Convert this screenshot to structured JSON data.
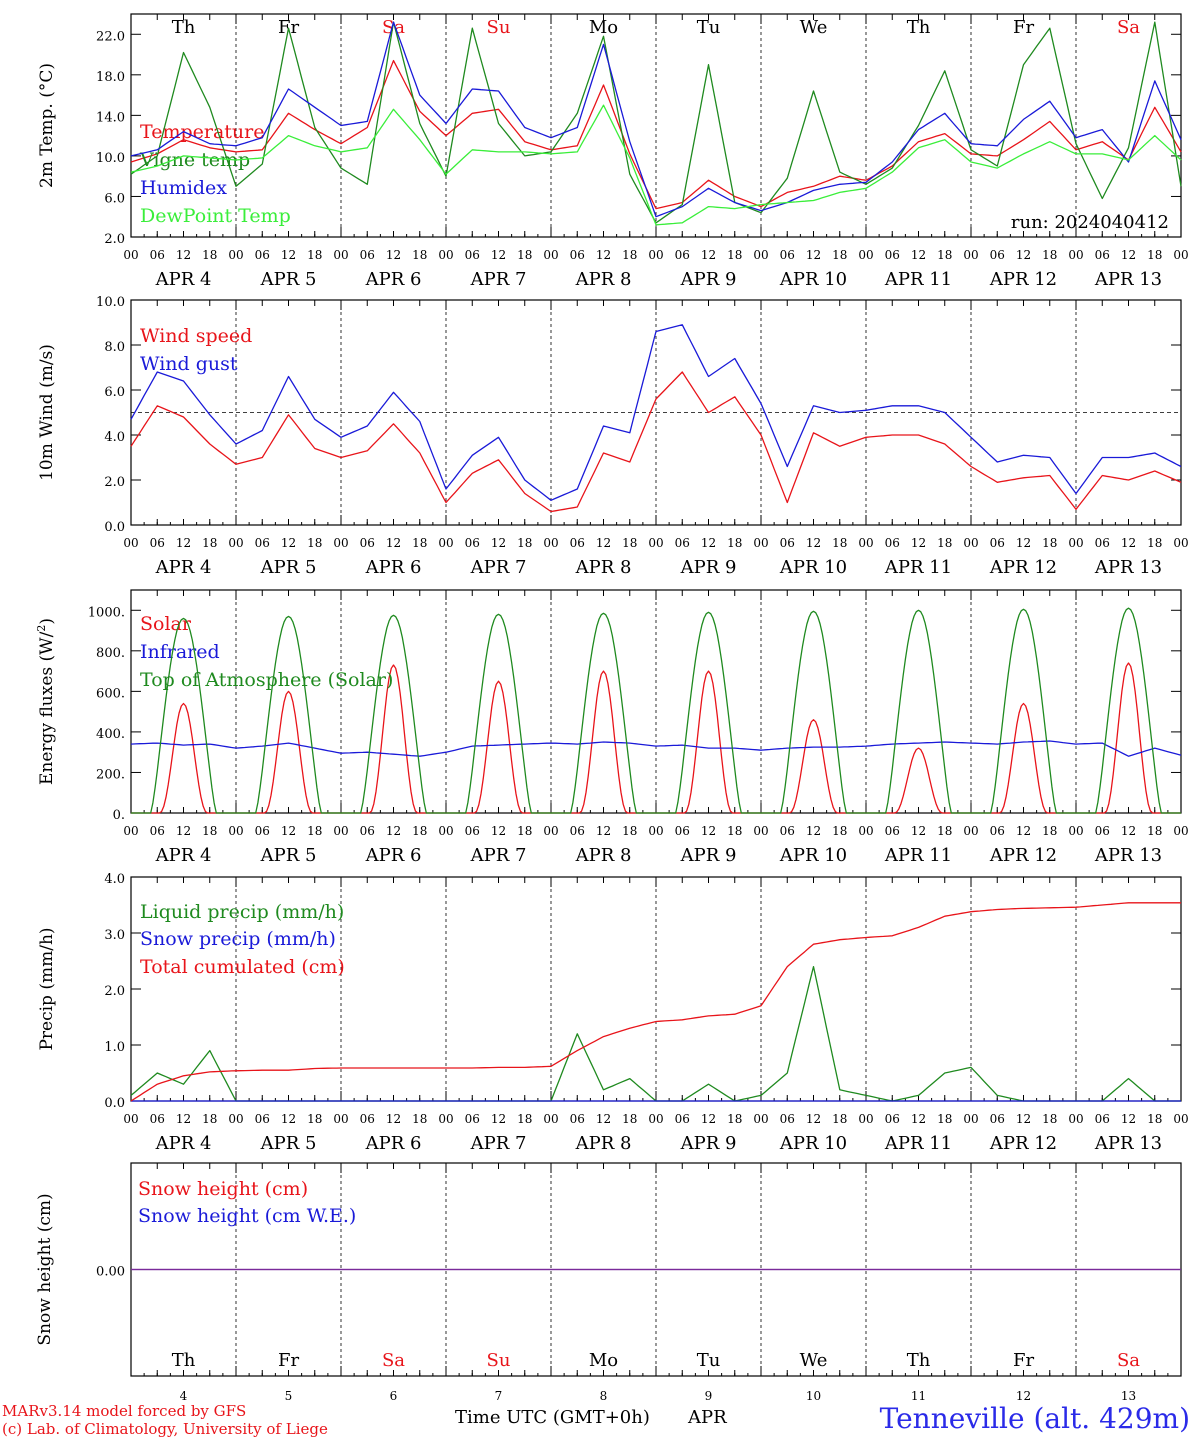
{
  "colors": {
    "red": "#e8141a",
    "darkgreen": "#1f8a1f",
    "blue": "#1a1ad8",
    "lightgreen": "#3aee3a",
    "purple": "#7a2a9a",
    "weekend": "#e8141a",
    "weekday": "#000000"
  },
  "days": [
    {
      "abbr": "Th",
      "date": "APR 4",
      "num": "4",
      "weekend": false
    },
    {
      "abbr": "Fr",
      "date": "APR 5",
      "num": "5",
      "weekend": false
    },
    {
      "abbr": "Sa",
      "date": "APR 6",
      "num": "6",
      "weekend": true
    },
    {
      "abbr": "Su",
      "date": "APR 7",
      "num": "7",
      "weekend": true
    },
    {
      "abbr": "Mo",
      "date": "APR 8",
      "num": "8",
      "weekend": false
    },
    {
      "abbr": "Tu",
      "date": "APR 9",
      "num": "9",
      "weekend": false
    },
    {
      "abbr": "We",
      "date": "APR 10",
      "num": "10",
      "weekend": false
    },
    {
      "abbr": "Th",
      "date": "APR 11",
      "num": "11",
      "weekend": false
    },
    {
      "abbr": "Fr",
      "date": "APR 12",
      "num": "12",
      "weekend": false
    },
    {
      "abbr": "Sa",
      "date": "APR 13",
      "num": "13",
      "weekend": true
    }
  ],
  "hour_labels": [
    "00",
    "06",
    "12",
    "18"
  ],
  "run_label": "run: 2024040412",
  "footer": {
    "credit_line1": "MARv3.14 model forced by GFS",
    "credit_line2": "(c) Lab. of Climatology, University of Liege",
    "xlabel": "Time UTC (GMT+0h)",
    "month": "APR",
    "station": "Tenneville (alt. 429m)"
  },
  "chart_data": [
    {
      "type": "line",
      "ylabel": "2m Temp. (°C)",
      "ylim": [
        2,
        24
      ],
      "yticks": [
        "2.0",
        "6.0",
        "10.0",
        "14.0",
        "18.0",
        "22.0"
      ],
      "x": [
        0,
        6,
        12,
        18,
        24,
        30,
        36,
        42,
        48,
        54,
        60,
        66,
        72,
        78,
        84,
        90,
        96,
        102,
        108,
        114,
        120,
        126,
        132,
        138,
        144,
        150,
        156,
        162,
        168,
        174,
        180,
        186,
        192,
        198,
        204,
        210,
        216,
        222,
        228,
        234,
        240
      ],
      "series": [
        {
          "name": "Temperature",
          "color": "red",
          "values": [
            9.4,
            10.2,
            11.6,
            10.8,
            10.4,
            10.6,
            14.2,
            12.6,
            11.2,
            12.8,
            19.4,
            14.4,
            12.0,
            14.2,
            14.6,
            11.4,
            10.6,
            11.0,
            17.0,
            10.2,
            4.8,
            5.4,
            7.6,
            6.0,
            5.0,
            6.4,
            7.0,
            8.0,
            7.6,
            9.0,
            11.4,
            12.2,
            10.2,
            10.0,
            11.6,
            13.4,
            10.6,
            11.4,
            9.6,
            14.8,
            10.4
          ]
        },
        {
          "name": "Vigne temp",
          "color": "darkgreen",
          "values": [
            8.2,
            10.0,
            20.2,
            14.8,
            7.0,
            9.2,
            22.6,
            12.8,
            8.8,
            7.2,
            23.2,
            13.2,
            8.0,
            22.6,
            13.2,
            10.0,
            10.4,
            14.2,
            21.8,
            8.2,
            3.4,
            5.2,
            19.0,
            5.4,
            4.4,
            7.8,
            16.4,
            8.4,
            7.2,
            8.8,
            13.0,
            18.4,
            10.6,
            9.0,
            19.0,
            22.6,
            11.2,
            5.8,
            10.8,
            23.2,
            7.0
          ]
        },
        {
          "name": "Humidex",
          "color": "blue",
          "values": [
            10.0,
            10.6,
            12.4,
            11.2,
            11.0,
            11.8,
            16.6,
            14.8,
            13.0,
            13.4,
            23.2,
            16.0,
            13.2,
            16.6,
            16.4,
            12.8,
            11.8,
            12.8,
            21.0,
            11.4,
            4.0,
            5.0,
            6.8,
            5.4,
            4.6,
            5.4,
            6.6,
            7.2,
            7.4,
            9.4,
            12.6,
            14.2,
            11.2,
            11.0,
            13.6,
            15.4,
            11.8,
            12.6,
            9.4,
            17.4,
            11.6
          ]
        },
        {
          "name": "DewPoint Temp",
          "color": "lightgreen",
          "values": [
            8.4,
            9.0,
            10.0,
            9.8,
            9.6,
            9.8,
            12.0,
            11.0,
            10.4,
            10.8,
            14.6,
            11.6,
            8.2,
            10.6,
            10.4,
            10.4,
            10.2,
            10.4,
            15.0,
            9.8,
            3.2,
            3.4,
            5.0,
            4.8,
            5.2,
            5.4,
            5.6,
            6.4,
            6.8,
            8.4,
            10.8,
            11.6,
            9.4,
            8.8,
            10.2,
            11.4,
            10.2,
            10.2,
            9.6,
            12.0,
            9.6
          ]
        }
      ]
    },
    {
      "type": "line",
      "ylabel": "10m Wind (m/s)",
      "ylim": [
        0,
        10
      ],
      "yticks": [
        "0.0",
        "2.0",
        "4.0",
        "6.0",
        "8.0",
        "10.0"
      ],
      "reference_line": 5.0,
      "x": [
        0,
        6,
        12,
        18,
        24,
        30,
        36,
        42,
        48,
        54,
        60,
        66,
        72,
        78,
        84,
        90,
        96,
        102,
        108,
        114,
        120,
        126,
        132,
        138,
        144,
        150,
        156,
        162,
        168,
        174,
        180,
        186,
        192,
        198,
        204,
        210,
        216,
        222,
        228,
        234,
        240
      ],
      "series": [
        {
          "name": "Wind speed",
          "color": "red",
          "values": [
            3.5,
            5.3,
            4.8,
            3.6,
            2.7,
            3.0,
            4.9,
            3.4,
            3.0,
            3.3,
            4.5,
            3.2,
            1.0,
            2.3,
            2.9,
            1.4,
            0.6,
            0.8,
            3.2,
            2.8,
            5.6,
            6.8,
            5.0,
            5.7,
            4.0,
            1.0,
            4.1,
            3.5,
            3.9,
            4.0,
            4.0,
            3.6,
            2.6,
            1.9,
            2.1,
            2.2,
            0.7,
            2.2,
            2.0,
            2.4,
            1.9
          ]
        },
        {
          "name": "Wind gust",
          "color": "blue",
          "values": [
            4.7,
            6.8,
            6.4,
            4.9,
            3.6,
            4.2,
            6.6,
            4.7,
            3.9,
            4.4,
            5.9,
            4.6,
            1.6,
            3.1,
            3.9,
            2.0,
            1.1,
            1.6,
            4.4,
            4.1,
            8.6,
            8.9,
            6.6,
            7.4,
            5.4,
            2.6,
            5.3,
            5.0,
            5.1,
            5.3,
            5.3,
            5.0,
            3.9,
            2.8,
            3.1,
            3.0,
            1.4,
            3.0,
            3.0,
            3.2,
            2.6
          ]
        }
      ]
    },
    {
      "type": "line",
      "ylabel": "Energy fluxes (W/m²)",
      "ylim": [
        0,
        1100
      ],
      "yticks": [
        "0.",
        "200.",
        "400.",
        "600.",
        "800.",
        "1000."
      ],
      "series": [
        {
          "name": "Solar",
          "color": "red",
          "daily_peaks": [
            540,
            600,
            730,
            650,
            700,
            700,
            460,
            320,
            540,
            740
          ]
        },
        {
          "name": "Infrared",
          "color": "blue",
          "values": [
            340,
            345,
            335,
            340,
            320,
            330,
            345,
            320,
            295,
            300,
            290,
            280,
            300,
            330,
            335,
            340,
            345,
            340,
            350,
            345,
            330,
            335,
            320,
            320,
            310,
            320,
            325,
            325,
            330,
            340,
            345,
            350,
            345,
            340,
            350,
            355,
            340,
            345,
            280,
            320,
            285
          ]
        },
        {
          "name": "Top of Atmosphere (Solar)",
          "color": "darkgreen",
          "daily_peaks": [
            960,
            970,
            975,
            980,
            985,
            990,
            995,
            1000,
            1005,
            1010
          ]
        }
      ]
    },
    {
      "type": "line",
      "ylabel": "Precip (mm/h)",
      "ylim": [
        0,
        4
      ],
      "yticks": [
        "0.0",
        "1.0",
        "2.0",
        "3.0",
        "4.0"
      ],
      "x": [
        0,
        6,
        12,
        18,
        24,
        30,
        36,
        42,
        48,
        54,
        60,
        66,
        72,
        78,
        84,
        90,
        96,
        102,
        108,
        114,
        120,
        126,
        132,
        138,
        144,
        150,
        156,
        162,
        168,
        174,
        180,
        186,
        192,
        198,
        204,
        210,
        216,
        222,
        228,
        234,
        240
      ],
      "series": [
        {
          "name": "Liquid precip (mm/h)",
          "color": "darkgreen",
          "values": [
            0.1,
            0.5,
            0.3,
            0.9,
            0.0,
            0.0,
            0.0,
            0.0,
            0.0,
            0.0,
            0.0,
            0.0,
            0.0,
            0.0,
            0.0,
            0.0,
            0.0,
            1.2,
            0.2,
            0.4,
            0.0,
            0.0,
            0.3,
            0.0,
            0.1,
            0.5,
            2.4,
            0.2,
            0.1,
            0.0,
            0.1,
            0.5,
            0.6,
            0.1,
            0.0,
            0.0,
            0.0,
            0.0,
            0.4,
            0.0,
            0.0
          ]
        },
        {
          "name": "Snow precip (mm/h)",
          "color": "blue",
          "values": [
            0,
            0,
            0,
            0,
            0,
            0,
            0,
            0,
            0,
            0,
            0,
            0,
            0,
            0,
            0,
            0,
            0,
            0,
            0,
            0,
            0,
            0,
            0,
            0,
            0,
            0,
            0,
            0,
            0,
            0,
            0,
            0,
            0,
            0,
            0,
            0,
            0,
            0,
            0,
            0,
            0
          ]
        },
        {
          "name": "Total cumulated (cm)",
          "color": "red",
          "values": [
            0.0,
            0.3,
            0.45,
            0.52,
            0.54,
            0.55,
            0.55,
            0.58,
            0.59,
            0.59,
            0.59,
            0.59,
            0.59,
            0.59,
            0.6,
            0.6,
            0.62,
            0.9,
            1.15,
            1.3,
            1.42,
            1.45,
            1.52,
            1.55,
            1.7,
            2.4,
            2.8,
            2.88,
            2.92,
            2.95,
            3.1,
            3.3,
            3.38,
            3.42,
            3.44,
            3.45,
            3.46,
            3.5,
            3.54,
            3.54,
            3.54
          ]
        }
      ]
    },
    {
      "type": "line",
      "ylabel": "Snow height (cm)",
      "ylim": [
        -1,
        1
      ],
      "yticks": [
        "0.00"
      ],
      "series": [
        {
          "name": "Snow height (cm)",
          "color": "red",
          "values": [
            0,
            0
          ]
        },
        {
          "name": "Snow height (cm W.E.)",
          "color": "blue",
          "values": [
            0,
            0
          ]
        }
      ]
    }
  ]
}
